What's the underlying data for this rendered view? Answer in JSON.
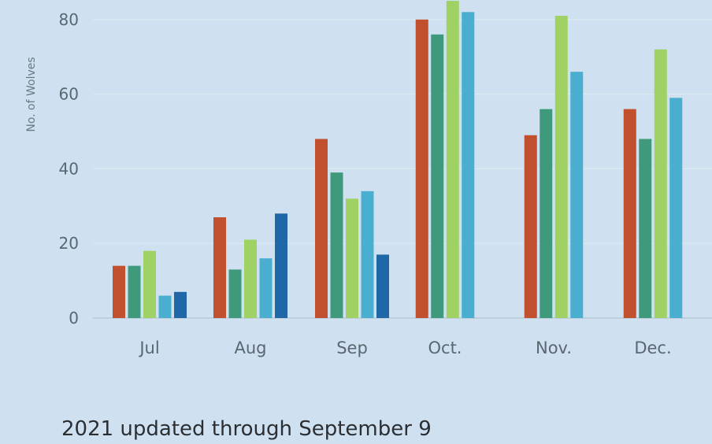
{
  "caption": "2021 updated through September 9",
  "chart_data": {
    "type": "bar",
    "title": "",
    "xlabel": "",
    "ylabel": "No. of Wolves",
    "categories": [
      "Jul",
      "Aug",
      "Sep",
      "Oct.",
      "Nov.",
      "Dec."
    ],
    "yticks": [
      0,
      20,
      40,
      60,
      80
    ],
    "ylim": [
      0,
      85
    ],
    "grid": true,
    "series": [
      {
        "color": "#c0502e",
        "values": [
          14,
          27,
          48,
          80,
          49,
          56
        ]
      },
      {
        "color": "#3f9a7c",
        "values": [
          14,
          13,
          39,
          76,
          56,
          48
        ]
      },
      {
        "color": "#9fd165",
        "values": [
          18,
          21,
          32,
          85,
          81,
          72
        ]
      },
      {
        "color": "#4aaed0",
        "values": [
          6,
          16,
          34,
          82,
          66,
          59
        ]
      },
      {
        "color": "#1f67a7",
        "values": [
          7,
          28,
          17,
          null,
          null,
          null
        ]
      }
    ]
  }
}
